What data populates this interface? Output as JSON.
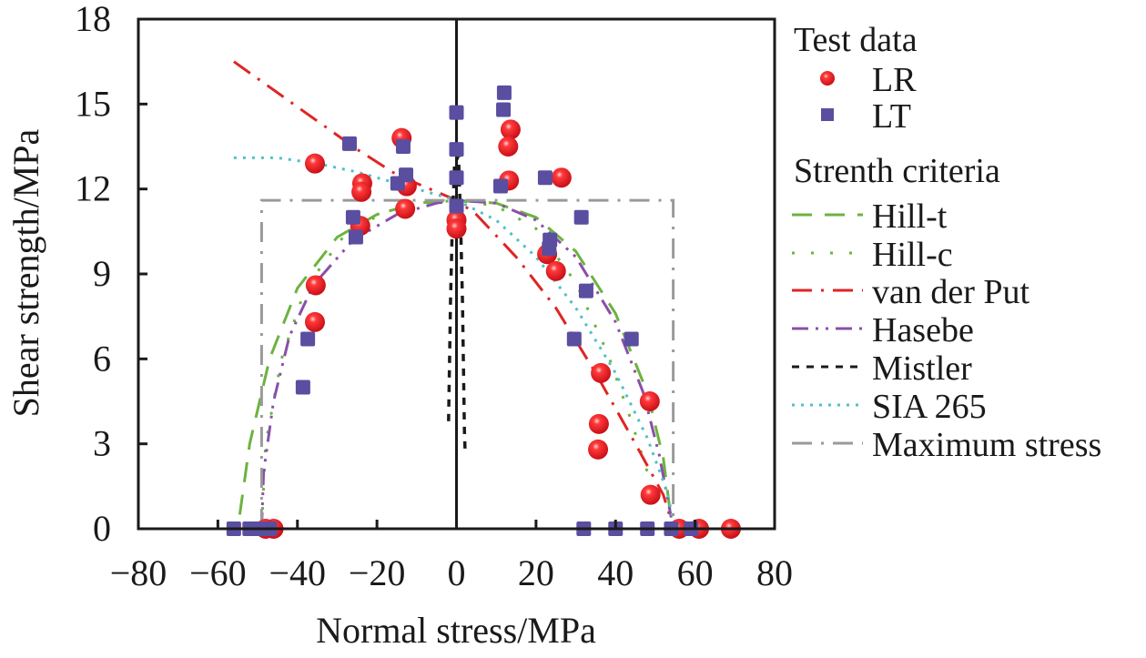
{
  "chart_data": {
    "type": "scatter",
    "title": "",
    "xlabel": "Normal stress/MPa",
    "ylabel": "Shear strength/MPa",
    "xlim": [
      -80,
      80
    ],
    "ylim": [
      0,
      18
    ],
    "xticks": [
      -80,
      -60,
      -40,
      -20,
      0,
      20,
      40,
      60,
      80
    ],
    "yticks": [
      0,
      3,
      6,
      9,
      12,
      15,
      18
    ],
    "xtick_labels": [
      "−80",
      "−60",
      "−40",
      "−20",
      "0",
      "20",
      "40",
      "60",
      "80"
    ],
    "ytick_labels": [
      "0",
      "3",
      "6",
      "9",
      "12",
      "15",
      "18"
    ],
    "grid": false,
    "legend_position": "right",
    "legend": {
      "group1_title": "Test data",
      "group2_title": "Strenth criteria",
      "entries": [
        {
          "name": "LR",
          "kind": "marker",
          "marker": "circle",
          "color": "#e8202a"
        },
        {
          "name": "LT",
          "kind": "marker",
          "marker": "square",
          "color": "#5a4ea0"
        },
        {
          "name": "Hill-t",
          "kind": "line",
          "color": "#6cb33f",
          "dash": "dash"
        },
        {
          "name": "Hill-c",
          "kind": "line",
          "color": "#6cb33f",
          "dash": "dot-sparse"
        },
        {
          "name": "van der Put",
          "kind": "line",
          "color": "#e02424",
          "dash": "dash-dot"
        },
        {
          "name": "Hasebe",
          "kind": "line",
          "color": "#8a4fa8",
          "dash": "dash-dot-dot"
        },
        {
          "name": "Mistler",
          "kind": "line",
          "color": "#1a1a1a",
          "dash": "short-dash"
        },
        {
          "name": "SIA 265",
          "kind": "line",
          "color": "#4fc1c9",
          "dash": "dot"
        },
        {
          "name": "Maximum stress",
          "kind": "line",
          "color": "#9a9a9a",
          "dash": "dash-dot"
        }
      ]
    },
    "series": [
      {
        "name": "LR",
        "type": "scatter",
        "marker": "circle",
        "color": "#e8202a",
        "points": [
          [
            -35.6,
            12.9
          ],
          [
            -13.8,
            13.8
          ],
          [
            -12.5,
            12.1
          ],
          [
            -23.7,
            12.2
          ],
          [
            -23.9,
            11.9
          ],
          [
            -24.2,
            10.7
          ],
          [
            -12.9,
            11.3
          ],
          [
            -35.4,
            8.6
          ],
          [
            -35.6,
            7.3
          ],
          [
            0,
            10.9
          ],
          [
            0,
            10.6
          ],
          [
            13.6,
            14.1
          ],
          [
            13.0,
            13.5
          ],
          [
            13.2,
            12.3
          ],
          [
            26.4,
            12.4
          ],
          [
            22.8,
            9.7
          ],
          [
            25.0,
            9.1
          ],
          [
            36.3,
            5.5
          ],
          [
            35.8,
            3.7
          ],
          [
            35.6,
            2.8
          ],
          [
            48.8,
            1.2
          ],
          [
            48.6,
            4.5
          ],
          [
            -46,
            0
          ],
          [
            -48,
            0
          ],
          [
            56,
            0
          ],
          [
            61,
            0
          ],
          [
            69,
            0
          ]
        ]
      },
      {
        "name": "LT",
        "type": "scatter",
        "marker": "square",
        "color": "#5a4ea0",
        "points": [
          [
            -26.9,
            13.6
          ],
          [
            -13.4,
            13.5
          ],
          [
            -12.7,
            12.5
          ],
          [
            -14.8,
            12.2
          ],
          [
            -26.0,
            11.0
          ],
          [
            -25.3,
            10.3
          ],
          [
            -37.4,
            6.7
          ],
          [
            -38.6,
            5.0
          ],
          [
            0,
            14.7
          ],
          [
            0,
            13.4
          ],
          [
            0,
            12.4
          ],
          [
            0,
            11.4
          ],
          [
            12.0,
            15.4
          ],
          [
            11.8,
            14.8
          ],
          [
            11.1,
            12.1
          ],
          [
            22.3,
            12.4
          ],
          [
            31.4,
            11.0
          ],
          [
            32.6,
            8.4
          ],
          [
            29.6,
            6.7
          ],
          [
            23.5,
            10.2
          ],
          [
            23.3,
            9.9
          ],
          [
            44.0,
            6.7
          ],
          [
            -56,
            0
          ],
          [
            -52,
            0
          ],
          [
            -49,
            0
          ],
          [
            -47,
            0
          ],
          [
            32,
            0
          ],
          [
            40,
            0
          ],
          [
            48,
            0
          ],
          [
            54,
            0
          ],
          [
            59,
            0
          ]
        ]
      },
      {
        "name": "Hill-t",
        "type": "line",
        "color": "#6cb33f",
        "points": [
          [
            -54.5,
            0.5
          ],
          [
            -52,
            3
          ],
          [
            -47,
            6
          ],
          [
            -40,
            8.5
          ],
          [
            -30,
            10.3
          ],
          [
            -20,
            11.1
          ],
          [
            -10,
            11.5
          ],
          [
            0,
            11.6
          ],
          [
            10,
            11.5
          ],
          [
            20,
            11.0
          ],
          [
            30,
            9.8
          ],
          [
            40,
            7.6
          ],
          [
            48,
            4.8
          ],
          [
            52,
            2.5
          ],
          [
            54,
            0.3
          ]
        ]
      },
      {
        "name": "Hill-c",
        "type": "line",
        "color": "#6cb33f",
        "points": [
          [
            -49,
            0
          ],
          [
            -48,
            3
          ],
          [
            -44,
            6
          ],
          [
            -38,
            8.5
          ],
          [
            -28,
            10.4
          ],
          [
            -18,
            11.2
          ],
          [
            -8,
            11.5
          ],
          [
            0,
            11.6
          ],
          [
            10,
            11.4
          ],
          [
            20,
            10.6
          ],
          [
            30,
            8.7
          ],
          [
            38,
            6.2
          ],
          [
            44,
            3.8
          ],
          [
            48,
            2.0
          ],
          [
            50,
            1.0
          ]
        ]
      },
      {
        "name": "van der Put",
        "type": "line",
        "color": "#e02424",
        "points": [
          [
            -56,
            16.5
          ],
          [
            -45,
            15.4
          ],
          [
            -35,
            14.4
          ],
          [
            -25,
            13.4
          ],
          [
            -15,
            12.5
          ],
          [
            -5,
            11.9
          ],
          [
            0,
            11.6
          ],
          [
            5,
            11.1
          ],
          [
            15,
            9.6
          ],
          [
            25,
            7.8
          ],
          [
            35,
            5.5
          ],
          [
            45,
            3.0
          ],
          [
            52,
            1.2
          ],
          [
            54,
            0.3
          ]
        ]
      },
      {
        "name": "Hasebe",
        "type": "line",
        "color": "#8a4fa8",
        "points": [
          [
            -49,
            0
          ],
          [
            -48.5,
            2
          ],
          [
            -46,
            4.5
          ],
          [
            -42,
            6.8
          ],
          [
            -36,
            8.6
          ],
          [
            -26,
            10.2
          ],
          [
            -15,
            11.1
          ],
          [
            -5,
            11.5
          ],
          [
            0,
            11.6
          ],
          [
            10,
            11.5
          ],
          [
            20,
            10.9
          ],
          [
            30,
            9.6
          ],
          [
            40,
            7.3
          ],
          [
            47,
            4.8
          ],
          [
            51,
            2.6
          ],
          [
            54,
            0.4
          ]
        ]
      },
      {
        "name": "Mistler",
        "type": "line",
        "color": "#1a1a1a",
        "points": [
          [
            -2,
            3.8
          ],
          [
            -1.5,
            8
          ],
          [
            -1,
            11
          ],
          [
            -0.5,
            12.8
          ],
          [
            0.5,
            13.2
          ],
          [
            1,
            11
          ],
          [
            1.5,
            8
          ],
          [
            2,
            3.5
          ],
          [
            2.2,
            2.6
          ]
        ]
      },
      {
        "name": "SIA 265",
        "type": "line",
        "color": "#4fc1c9",
        "points": [
          [
            -56,
            13.1
          ],
          [
            -45,
            13.1
          ],
          [
            -35,
            12.9
          ],
          [
            -25,
            12.6
          ],
          [
            -15,
            12.2
          ],
          [
            -5,
            11.8
          ],
          [
            0,
            11.6
          ],
          [
            10,
            10.9
          ],
          [
            20,
            9.6
          ],
          [
            30,
            7.8
          ],
          [
            40,
            5.5
          ],
          [
            48,
            3.2
          ],
          [
            53,
            1.3
          ],
          [
            54.5,
            0.3
          ]
        ]
      },
      {
        "name": "Maximum stress",
        "type": "line",
        "color": "#9a9a9a",
        "points": [
          [
            -49,
            0
          ],
          [
            -49,
            11.6
          ],
          [
            54.5,
            11.6
          ],
          [
            54.5,
            0
          ]
        ]
      }
    ]
  }
}
